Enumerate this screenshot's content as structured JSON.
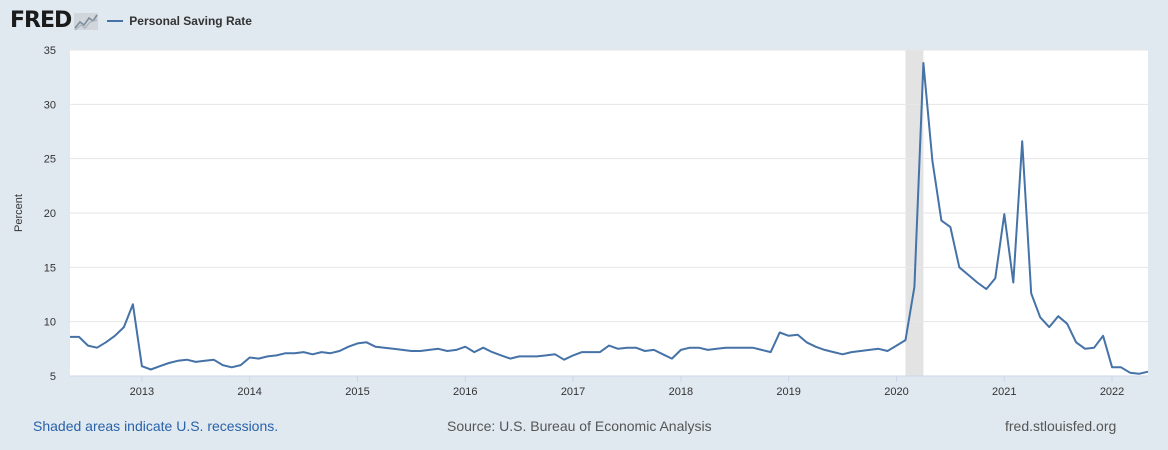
{
  "header": {
    "logo_text": "FRED",
    "logo_icon": "chart-line-icon",
    "legend_label": "Personal Saving Rate"
  },
  "colors": {
    "series": "#4572a7",
    "recession": "#e3e3e3",
    "plot_bg": "#ffffff",
    "page_bg": "#e1e9f0",
    "link": "#2862a9"
  },
  "footer": {
    "recessions_note": "Shaded areas indicate U.S. recessions.",
    "source": "Source: U.S. Bureau of Economic Analysis",
    "site": "fred.stlouisfed.org"
  },
  "chart_data": {
    "type": "line",
    "title": "",
    "xlabel": "",
    "ylabel": "Percent",
    "ylim": [
      5,
      35
    ],
    "y_ticks": [
      5,
      10,
      15,
      20,
      25,
      30,
      35
    ],
    "x_range": [
      "2012-05",
      "2022-05"
    ],
    "x_tick_labels": [
      "2013",
      "2014",
      "2015",
      "2016",
      "2017",
      "2018",
      "2019",
      "2020",
      "2021",
      "2022"
    ],
    "grid": "horizontal",
    "recessions": [
      {
        "start": "2020-02",
        "end": "2020-04"
      }
    ],
    "series": [
      {
        "name": "Personal Saving Rate",
        "start": "2012-05",
        "frequency": "monthly",
        "values": [
          8.6,
          8.6,
          7.8,
          7.6,
          8.1,
          8.7,
          9.5,
          11.6,
          5.9,
          5.6,
          5.9,
          6.2,
          6.4,
          6.5,
          6.3,
          6.4,
          6.5,
          6.0,
          5.8,
          6.0,
          6.7,
          6.6,
          6.8,
          6.9,
          7.1,
          7.1,
          7.2,
          7.0,
          7.2,
          7.1,
          7.3,
          7.7,
          8.0,
          8.1,
          7.7,
          7.6,
          7.5,
          7.4,
          7.3,
          7.3,
          7.4,
          7.5,
          7.3,
          7.4,
          7.7,
          7.2,
          7.6,
          7.2,
          6.9,
          6.6,
          6.8,
          6.8,
          6.8,
          6.9,
          7.0,
          6.5,
          6.9,
          7.2,
          7.2,
          7.2,
          7.8,
          7.5,
          7.6,
          7.6,
          7.3,
          7.4,
          7.0,
          6.6,
          7.4,
          7.6,
          7.6,
          7.4,
          7.5,
          7.6,
          7.6,
          7.6,
          7.6,
          7.4,
          7.2,
          9.0,
          8.7,
          8.8,
          8.1,
          7.7,
          7.4,
          7.2,
          7.0,
          7.2,
          7.3,
          7.4,
          7.5,
          7.3,
          7.8,
          8.3,
          13.2,
          33.8,
          24.8,
          19.3,
          18.7,
          15.0,
          14.3,
          13.6,
          13.0,
          14.0,
          19.9,
          13.6,
          26.6,
          12.6,
          10.4,
          9.5,
          10.5,
          9.8,
          8.1,
          7.5,
          7.6,
          8.7,
          5.8,
          5.8,
          5.3,
          5.2,
          5.4
        ]
      }
    ]
  }
}
